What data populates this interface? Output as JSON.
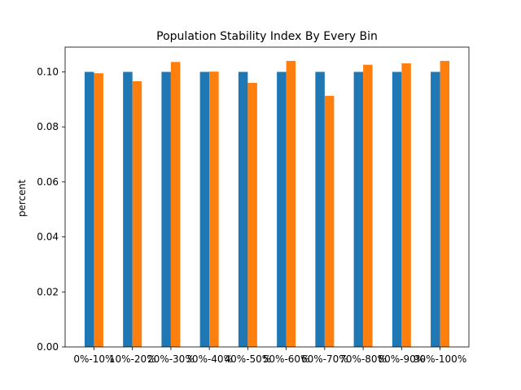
{
  "chart_data": {
    "type": "bar",
    "title": "Population Stability Index By Every Bin",
    "xlabel": "",
    "ylabel": "percent",
    "categories": [
      "0%-10%",
      "10%-20%",
      "20%-30%",
      "30%-40%",
      "40%-50%",
      "50%-60%",
      "60%-70%",
      "70%-80%",
      "80%-90%",
      "90%-100%"
    ],
    "series": [
      {
        "color": "#1f77b4",
        "values": [
          0.1,
          0.1,
          0.1,
          0.1,
          0.1,
          0.1,
          0.1,
          0.1,
          0.1,
          0.1
        ]
      },
      {
        "color": "#ff7f0e",
        "values": [
          0.0995,
          0.0966,
          0.1036,
          0.1001,
          0.096,
          0.104,
          0.0913,
          0.1026,
          0.1031,
          0.104
        ]
      }
    ],
    "ylim": [
      0,
      0.109
    ],
    "yticks": [
      "0.00",
      "0.02",
      "0.04",
      "0.06",
      "0.08",
      "0.10"
    ],
    "grid": false,
    "legend": "none"
  }
}
